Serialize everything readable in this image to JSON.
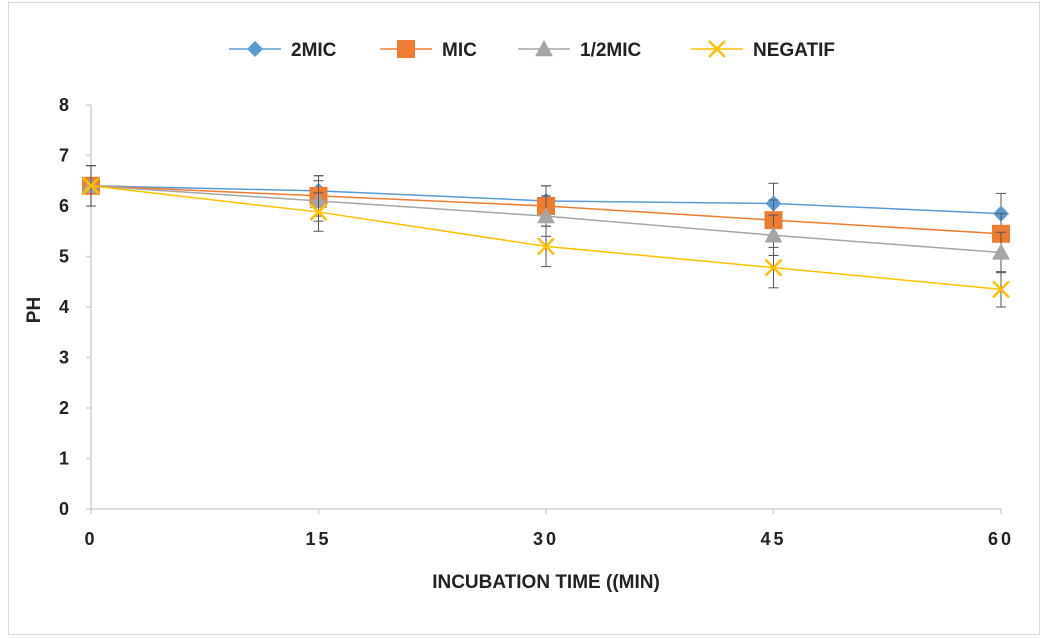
{
  "chart_data": {
    "type": "line",
    "title": "",
    "xlabel": "INCUBATION TIME ((MIN)",
    "ylabel": "PH",
    "x": [
      0,
      15,
      30,
      45,
      60
    ],
    "xticks": [
      "0",
      "15",
      "30",
      "45",
      "60"
    ],
    "yticks": [
      "0",
      "1",
      "2",
      "3",
      "4",
      "5",
      "6",
      "7",
      "8"
    ],
    "ylim": [
      0,
      8
    ],
    "xlim": [
      0,
      60
    ],
    "grid": false,
    "legend": "top",
    "series": [
      {
        "name": "2MIC",
        "color": "#5B9BD5",
        "marker": "diamond",
        "values": [
          6.4,
          6.3,
          6.1,
          6.05,
          5.85
        ],
        "errors": [
          0.4,
          0.3,
          0.3,
          0.4,
          0.4
        ]
      },
      {
        "name": "MIC",
        "color": "#ED7D31",
        "marker": "square",
        "values": [
          6.4,
          6.2,
          6.0,
          5.72,
          5.45
        ],
        "errors": [
          0.4,
          0.4,
          0.4,
          0.4,
          0.4
        ]
      },
      {
        "name": "1/2MIC",
        "color": "#A5A5A5",
        "marker": "triangle",
        "values": [
          6.4,
          6.1,
          5.8,
          5.42,
          5.08
        ],
        "errors": [
          0.4,
          0.4,
          0.4,
          0.4,
          0.4
        ]
      },
      {
        "name": "NEGATIF",
        "color": "#FFC000",
        "marker": "x",
        "values": [
          6.4,
          5.88,
          5.2,
          4.78,
          4.35
        ],
        "errors": [
          0.4,
          0.38,
          0.4,
          0.4,
          0.35
        ]
      }
    ]
  }
}
